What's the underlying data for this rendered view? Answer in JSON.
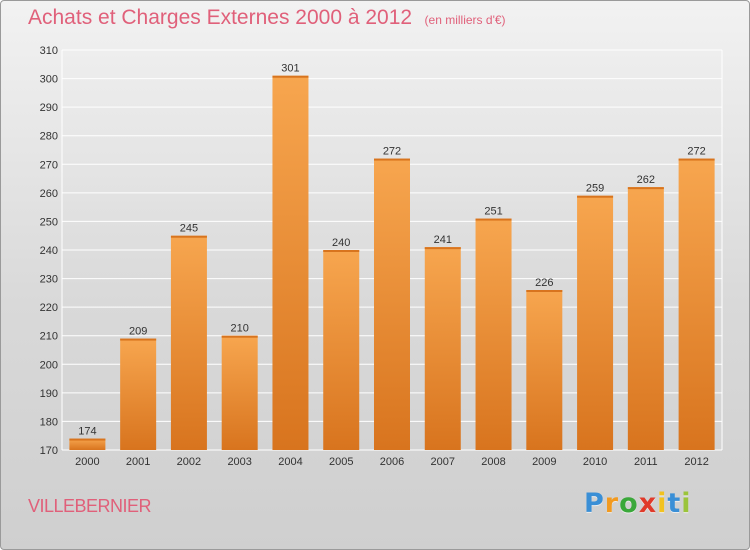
{
  "header": {
    "title": "Achats et Charges Externes 2000 à 2012",
    "unit": "(en milliers d'€)"
  },
  "commune": "VILLEBERNIER",
  "logo": {
    "text": "Proxiti",
    "letters": [
      {
        "ch": "P",
        "color": "#3a8fd6"
      },
      {
        "ch": "r",
        "color": "#f29a1f"
      },
      {
        "ch": "o",
        "color": "#3aa83a"
      },
      {
        "ch": "x",
        "color": "#e03a2a"
      },
      {
        "ch": "i",
        "color": "#f2c21f"
      },
      {
        "ch": "t",
        "color": "#3a8fd6"
      },
      {
        "ch": "i",
        "color": "#9bc43a"
      }
    ]
  },
  "colors": {
    "bar_top": "#f7a64f",
    "bar_bottom": "#d8741e",
    "grid": "#ffffff",
    "text_accent": "#e0607a"
  },
  "chart_data": {
    "type": "bar",
    "title": "Achats et Charges Externes 2000 à 2012",
    "subtitle": "(en milliers d'€)",
    "xlabel": "",
    "ylabel": "",
    "categories": [
      "2000",
      "2001",
      "2002",
      "2003",
      "2004",
      "2005",
      "2006",
      "2007",
      "2008",
      "2009",
      "2010",
      "2011",
      "2012"
    ],
    "values": [
      174,
      209,
      245,
      210,
      301,
      240,
      272,
      241,
      251,
      226,
      259,
      262,
      272
    ],
    "ylim": [
      170,
      310
    ],
    "yticks": [
      170,
      180,
      190,
      200,
      210,
      220,
      230,
      240,
      250,
      260,
      270,
      280,
      290,
      300,
      310
    ],
    "grid": true,
    "legend": "none"
  }
}
